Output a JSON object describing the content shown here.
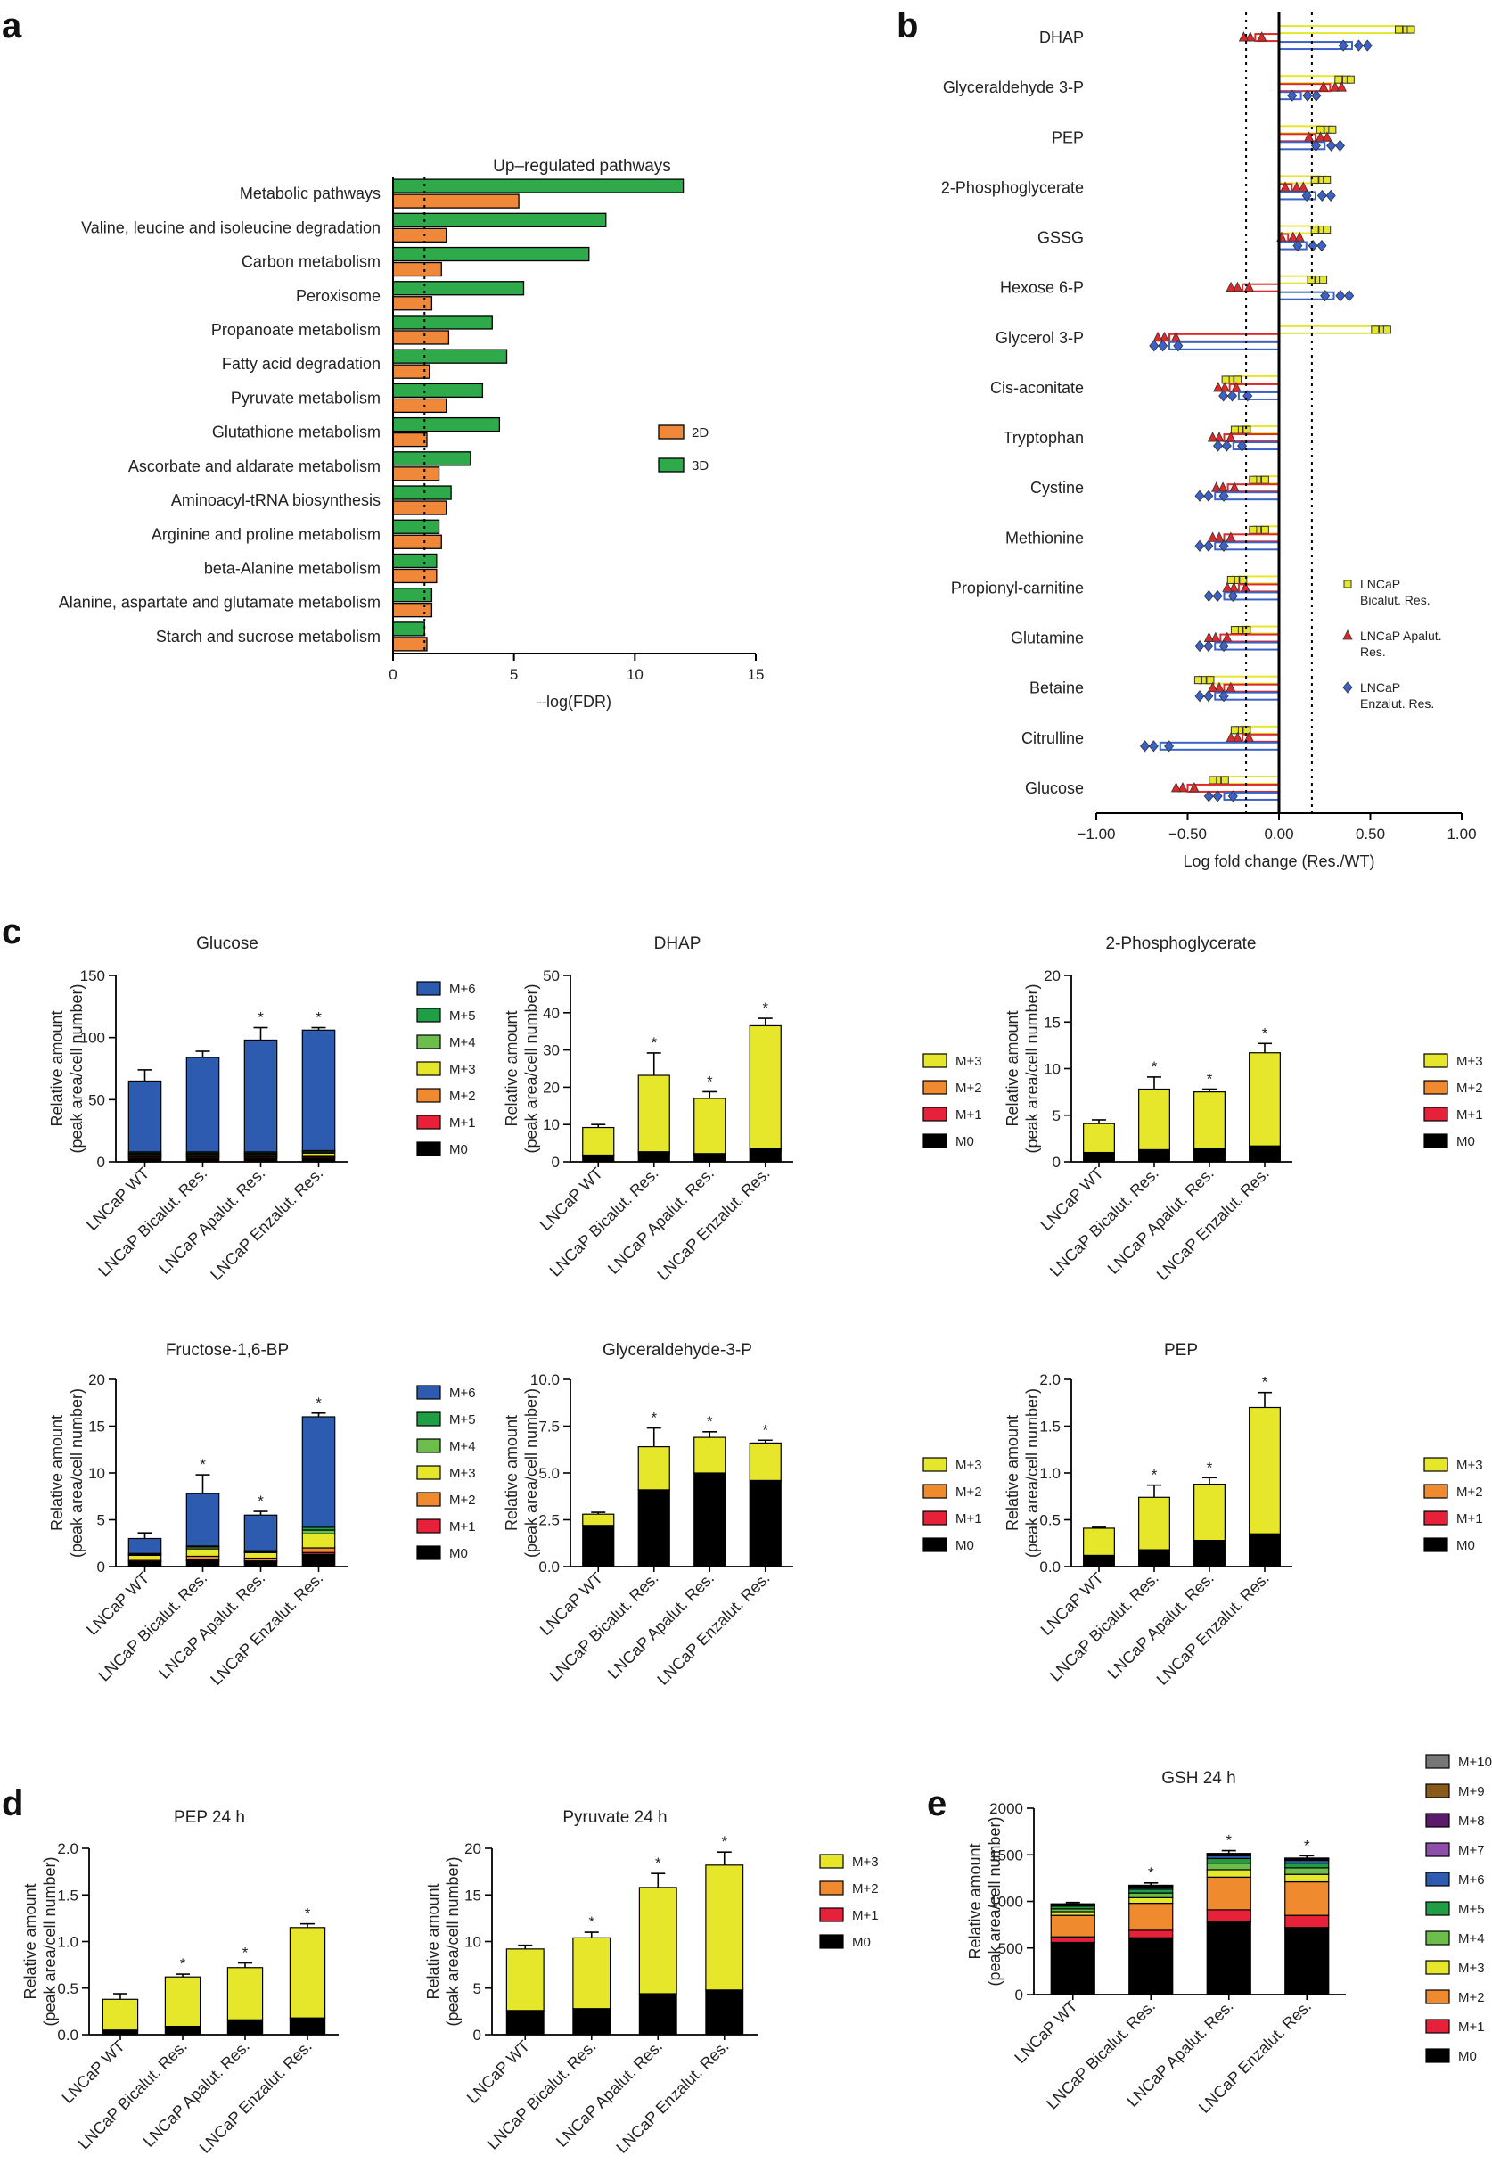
{
  "panel_letters": {
    "a": "a",
    "b": "b",
    "c": "c",
    "d": "d",
    "e": "e"
  },
  "categories4": [
    "LNCaP WT",
    "LNCaP Bicalut. Res.",
    "LNCaP Apalut. Res.",
    "LNCaP Enzalut. Res."
  ],
  "chart_data": [
    {
      "id": "a",
      "type": "bar",
      "orientation": "horizontal",
      "title": "Up–regulated pathways",
      "xlabel": "–log(FDR)",
      "ylabel": "",
      "xlim": [
        0,
        15
      ],
      "xticks": [
        0,
        5,
        10,
        15
      ],
      "threshold_line": 1.3,
      "categories": [
        "Metabolic pathways",
        "Valine, leucine and isoleucine degradation",
        "Carbon metabolism",
        "Peroxisome",
        "Propanoate metabolism",
        "Fatty acid degradation",
        "Pyruvate metabolism",
        "Glutathione metabolism",
        "Ascorbate and aldarate metabolism",
        "Aminoacyl-tRNA biosynthesis",
        "Arginine and proline metabolism",
        "beta-Alanine metabolism",
        "Alanine, aspartate and glutamate metabolism",
        "Starch and sucrose metabolism"
      ],
      "series": [
        {
          "name": "3D",
          "color": "#2eaa4a",
          "values": [
            12.0,
            8.8,
            8.1,
            5.4,
            4.1,
            4.7,
            3.7,
            4.4,
            3.2,
            2.4,
            1.9,
            1.8,
            1.6,
            1.3
          ]
        },
        {
          "name": "2D",
          "color": "#f0883a",
          "values": [
            5.2,
            2.2,
            2.0,
            1.6,
            2.3,
            1.5,
            2.2,
            1.4,
            1.9,
            2.2,
            2.0,
            1.8,
            1.6,
            1.4
          ]
        }
      ],
      "legend_order": [
        "2D",
        "3D"
      ]
    },
    {
      "id": "b",
      "type": "bar",
      "orientation": "horizontal",
      "title": "",
      "xlabel": "Log fold change (Res./WT)",
      "ylabel": "",
      "xlim": [
        -1.0,
        1.0
      ],
      "xticks": [
        -1.0,
        -0.5,
        0.0,
        0.5,
        1.0
      ],
      "xtick_labels": [
        "−1.00",
        "−0.50",
        "0.00",
        "0.50",
        "1.00"
      ],
      "threshold_lines": [
        -0.18,
        0.18
      ],
      "categories": [
        "DHAP",
        "Glyceraldehyde 3-P",
        "PEP",
        "2-Phosphoglycerate",
        "GSSG",
        "Hexose 6-P",
        "Glycerol 3-P",
        "Cis-aconitate",
        "Tryptophan",
        "Cystine",
        "Methionine",
        "Propionyl-carnitine",
        "Glutamine",
        "Betaine",
        "Citrulline",
        "Glucose"
      ],
      "series": [
        {
          "name": "LNCaP Bicalut. Res.",
          "legend_lines": [
            "LNCaP",
            "Bicalut. Res."
          ],
          "color": "#e6e62a",
          "marker": "square",
          "values": [
            0.68,
            0.35,
            0.25,
            0.22,
            0.22,
            0.2,
            0.55,
            -0.25,
            -0.2,
            -0.1,
            -0.1,
            -0.22,
            -0.2,
            -0.4,
            -0.2,
            -0.32
          ]
        },
        {
          "name": "LNCaP Apalut. Res.",
          "legend_lines": [
            "LNCaP Apalut.",
            "Res."
          ],
          "color": "#e02828",
          "marker": "triangle",
          "values": [
            -0.13,
            0.28,
            0.2,
            0.07,
            0.05,
            -0.2,
            -0.6,
            -0.27,
            -0.3,
            -0.28,
            -0.3,
            -0.22,
            -0.32,
            -0.3,
            -0.2,
            -0.5
          ]
        },
        {
          "name": "LNCaP Enzalut. Res.",
          "legend_lines": [
            "LNCaP",
            "Enzalut. Res."
          ],
          "color": "#3a62c8",
          "marker": "diamond",
          "values": [
            0.4,
            0.12,
            0.25,
            0.2,
            0.15,
            0.3,
            -0.6,
            -0.22,
            -0.25,
            -0.35,
            -0.35,
            -0.3,
            -0.35,
            -0.35,
            -0.65,
            -0.3
          ]
        }
      ]
    },
    {
      "id": "c1",
      "type": "bar",
      "stacked": true,
      "title": "Glucose",
      "ylabel_lines": [
        "Relative amount",
        "(peak area/cell number)"
      ],
      "ylim": [
        0,
        150
      ],
      "yticks": [
        0,
        50,
        100,
        150
      ],
      "error": [
        9,
        5,
        10,
        2
      ],
      "significance": [
        "",
        "",
        "*",
        "*"
      ],
      "series": [
        {
          "name": "M0",
          "color": "#000000",
          "values": [
            3,
            3,
            3,
            3
          ]
        },
        {
          "name": "M+1",
          "color": "#e8213a",
          "values": [
            1,
            1,
            1,
            1
          ]
        },
        {
          "name": "M+2",
          "color": "#f08a2e",
          "values": [
            1,
            1,
            1,
            1
          ]
        },
        {
          "name": "M+3",
          "color": "#e6e62a",
          "values": [
            1,
            1,
            1,
            2
          ]
        },
        {
          "name": "M+4",
          "color": "#6cbd4a",
          "values": [
            1,
            1,
            1,
            1
          ]
        },
        {
          "name": "M+5",
          "color": "#1f9e44",
          "values": [
            1,
            1,
            1,
            1
          ]
        },
        {
          "name": "M+6",
          "color": "#2d5bb0",
          "values": [
            57,
            76,
            90,
            97
          ]
        }
      ]
    },
    {
      "id": "c2",
      "type": "bar",
      "stacked": true,
      "title": "DHAP",
      "ylabel_lines": [
        "Relative amount",
        "(peak area/cell number)"
      ],
      "ylim": [
        0,
        50
      ],
      "yticks": [
        0,
        10,
        20,
        30,
        40,
        50
      ],
      "error": [
        0.8,
        6,
        1.8,
        2
      ],
      "significance": [
        "",
        "*",
        "*",
        "*"
      ],
      "series": [
        {
          "name": "M0",
          "color": "#000000",
          "values": [
            1.5,
            2.2,
            1.8,
            3.0
          ]
        },
        {
          "name": "M+1",
          "color": "#e8213a",
          "values": [
            0.2,
            0.3,
            0.2,
            0.3
          ]
        },
        {
          "name": "M+2",
          "color": "#f08a2e",
          "values": [
            0.1,
            0.2,
            0.2,
            0.2
          ]
        },
        {
          "name": "M+3",
          "color": "#e6e62a",
          "values": [
            7.4,
            20.5,
            14.8,
            33.0
          ]
        }
      ]
    },
    {
      "id": "c3",
      "type": "bar",
      "stacked": true,
      "title": "2-Phosphoglycerate",
      "ylabel_lines": [
        "Relative amount",
        "(peak area/cell number)"
      ],
      "ylim": [
        0,
        20
      ],
      "yticks": [
        0,
        5,
        10,
        15,
        20
      ],
      "error": [
        0.4,
        1.3,
        0.3,
        1.0
      ],
      "significance": [
        "",
        "*",
        "*",
        "*"
      ],
      "series": [
        {
          "name": "M0",
          "color": "#000000",
          "values": [
            0.9,
            1.2,
            1.3,
            1.5
          ]
        },
        {
          "name": "M+1",
          "color": "#e8213a",
          "values": [
            0.05,
            0.05,
            0.05,
            0.1
          ]
        },
        {
          "name": "M+2",
          "color": "#f08a2e",
          "values": [
            0.05,
            0.05,
            0.05,
            0.1
          ]
        },
        {
          "name": "M+3",
          "color": "#e6e62a",
          "values": [
            3.1,
            6.5,
            6.1,
            10.0
          ]
        }
      ]
    },
    {
      "id": "c4",
      "type": "bar",
      "stacked": true,
      "title": "Fructose-1,6-BP",
      "ylabel_lines": [
        "Relative amount",
        "(peak area/cell number)"
      ],
      "ylim": [
        0,
        20
      ],
      "yticks": [
        0,
        5,
        10,
        15,
        20
      ],
      "error": [
        0.6,
        2.0,
        0.4,
        0.4
      ],
      "significance": [
        "",
        "*",
        "*",
        "*"
      ],
      "series": [
        {
          "name": "M0",
          "color": "#000000",
          "values": [
            0.5,
            0.6,
            0.5,
            1.3
          ]
        },
        {
          "name": "M+1",
          "color": "#e8213a",
          "values": [
            0.1,
            0.1,
            0.1,
            0.2
          ]
        },
        {
          "name": "M+2",
          "color": "#f08a2e",
          "values": [
            0.2,
            0.4,
            0.3,
            0.5
          ]
        },
        {
          "name": "M+3",
          "color": "#e6e62a",
          "values": [
            0.4,
            0.8,
            0.6,
            1.5
          ]
        },
        {
          "name": "M+4",
          "color": "#6cbd4a",
          "values": [
            0.1,
            0.2,
            0.1,
            0.4
          ]
        },
        {
          "name": "M+5",
          "color": "#1f9e44",
          "values": [
            0.1,
            0.1,
            0.1,
            0.3
          ]
        },
        {
          "name": "M+6",
          "color": "#2d5bb0",
          "values": [
            1.6,
            5.6,
            3.8,
            11.8
          ]
        }
      ]
    },
    {
      "id": "c5",
      "type": "bar",
      "stacked": true,
      "title": "Glyceraldehyde-3-P",
      "ylabel_lines": [
        "Relative amount",
        "(peak area/cell number)"
      ],
      "ylim": [
        0,
        10
      ],
      "yticks": [
        0,
        2.5,
        5.0,
        7.5,
        10.0
      ],
      "ytick_labels": [
        "0.0",
        "2.5",
        "5.0",
        "7.5",
        "10.0"
      ],
      "error": [
        0.1,
        1.0,
        0.3,
        0.15
      ],
      "significance": [
        "",
        "*",
        "*",
        "*"
      ],
      "series": [
        {
          "name": "M0",
          "color": "#000000",
          "values": [
            2.2,
            4.1,
            5.0,
            4.6
          ]
        },
        {
          "name": "M+1",
          "color": "#e8213a",
          "values": [
            0.0,
            0.0,
            0.0,
            0.0
          ]
        },
        {
          "name": "M+2",
          "color": "#f08a2e",
          "values": [
            0.0,
            0.0,
            0.0,
            0.0
          ]
        },
        {
          "name": "M+3",
          "color": "#e6e62a",
          "values": [
            0.6,
            2.3,
            1.9,
            2.0
          ]
        }
      ]
    },
    {
      "id": "c6",
      "type": "bar",
      "stacked": true,
      "title": "PEP",
      "ylabel_lines": [
        "Relative amount",
        "(peak area/cell number)"
      ],
      "ylim": [
        0,
        2.0
      ],
      "yticks": [
        0,
        0.5,
        1.0,
        1.5,
        2.0
      ],
      "ytick_labels": [
        "0.0",
        "0.5",
        "1.0",
        "1.5",
        "2.0"
      ],
      "error": [
        0.01,
        0.13,
        0.07,
        0.16
      ],
      "significance": [
        "",
        "*",
        "*",
        "*"
      ],
      "series": [
        {
          "name": "M0",
          "color": "#000000",
          "values": [
            0.12,
            0.18,
            0.28,
            0.35
          ]
        },
        {
          "name": "M+1",
          "color": "#e8213a",
          "values": [
            0.0,
            0.0,
            0.0,
            0.0
          ]
        },
        {
          "name": "M+2",
          "color": "#f08a2e",
          "values": [
            0.0,
            0.0,
            0.0,
            0.0
          ]
        },
        {
          "name": "M+3",
          "color": "#e6e62a",
          "values": [
            0.29,
            0.56,
            0.6,
            1.35
          ]
        }
      ]
    },
    {
      "id": "d1",
      "type": "bar",
      "stacked": true,
      "title": "PEP 24 h",
      "ylabel_lines": [
        "Relative amount",
        "(peak area/cell number)"
      ],
      "ylim": [
        0,
        2.0
      ],
      "yticks": [
        0,
        0.5,
        1.0,
        1.5,
        2.0
      ],
      "ytick_labels": [
        "0.0",
        "0.5",
        "1.0",
        "1.5",
        "2.0"
      ],
      "error": [
        0.06,
        0.03,
        0.05,
        0.04
      ],
      "significance": [
        "",
        "*",
        "*",
        "*"
      ],
      "series": [
        {
          "name": "M0",
          "color": "#000000",
          "values": [
            0.05,
            0.09,
            0.16,
            0.18
          ]
        },
        {
          "name": "M+1",
          "color": "#e8213a",
          "values": [
            0.0,
            0.0,
            0.0,
            0.0
          ]
        },
        {
          "name": "M+2",
          "color": "#f08a2e",
          "values": [
            0.0,
            0.0,
            0.0,
            0.0
          ]
        },
        {
          "name": "M+3",
          "color": "#e6e62a",
          "values": [
            0.33,
            0.53,
            0.56,
            0.97
          ]
        }
      ]
    },
    {
      "id": "d2",
      "type": "bar",
      "stacked": true,
      "title": "Pyruvate 24 h",
      "ylabel_lines": [
        "Relative amount",
        "(peak area/cell number)"
      ],
      "ylim": [
        0,
        20
      ],
      "yticks": [
        0,
        5,
        10,
        15,
        20
      ],
      "error": [
        0.4,
        0.6,
        1.5,
        1.4
      ],
      "significance": [
        "",
        "*",
        "*",
        "*"
      ],
      "series": [
        {
          "name": "M0",
          "color": "#000000",
          "values": [
            2.6,
            2.8,
            4.4,
            4.8
          ]
        },
        {
          "name": "M+1",
          "color": "#e8213a",
          "values": [
            0.0,
            0.0,
            0.0,
            0.0
          ]
        },
        {
          "name": "M+2",
          "color": "#f08a2e",
          "values": [
            0.0,
            0.0,
            0.0,
            0.0
          ]
        },
        {
          "name": "M+3",
          "color": "#e6e62a",
          "values": [
            6.6,
            7.6,
            11.4,
            13.4
          ]
        }
      ]
    },
    {
      "id": "e",
      "type": "bar",
      "stacked": true,
      "title": "GSH 24 h",
      "ylabel_lines": [
        "Relative amount",
        "(peak area/cell number)"
      ],
      "ylim": [
        0,
        2000
      ],
      "yticks": [
        0,
        500,
        1000,
        1500,
        2000
      ],
      "error": [
        15,
        25,
        30,
        25
      ],
      "significance": [
        "",
        "*",
        "*",
        "*"
      ],
      "series": [
        {
          "name": "M0",
          "color": "#000000",
          "values": [
            560,
            610,
            780,
            720
          ]
        },
        {
          "name": "M+1",
          "color": "#e8213a",
          "values": [
            60,
            80,
            130,
            130
          ]
        },
        {
          "name": "M+2",
          "color": "#f08a2e",
          "values": [
            230,
            290,
            350,
            360
          ]
        },
        {
          "name": "M+3",
          "color": "#e6e62a",
          "values": [
            40,
            60,
            80,
            80
          ]
        },
        {
          "name": "M+4",
          "color": "#6cbd4a",
          "values": [
            30,
            50,
            70,
            70
          ]
        },
        {
          "name": "M+5",
          "color": "#1f9e44",
          "values": [
            30,
            40,
            50,
            50
          ]
        },
        {
          "name": "M+6",
          "color": "#2d5bb0",
          "values": [
            10,
            20,
            30,
            30
          ]
        },
        {
          "name": "M+7",
          "color": "#8e4fa8",
          "values": [
            5,
            8,
            10,
            10
          ]
        },
        {
          "name": "M+8",
          "color": "#5b1a6b",
          "values": [
            3,
            5,
            5,
            5
          ]
        },
        {
          "name": "M+9",
          "color": "#8a5a1a",
          "values": [
            3,
            5,
            5,
            5
          ]
        },
        {
          "name": "M+10",
          "color": "#777777",
          "values": [
            3,
            5,
            5,
            5
          ]
        }
      ]
    }
  ]
}
